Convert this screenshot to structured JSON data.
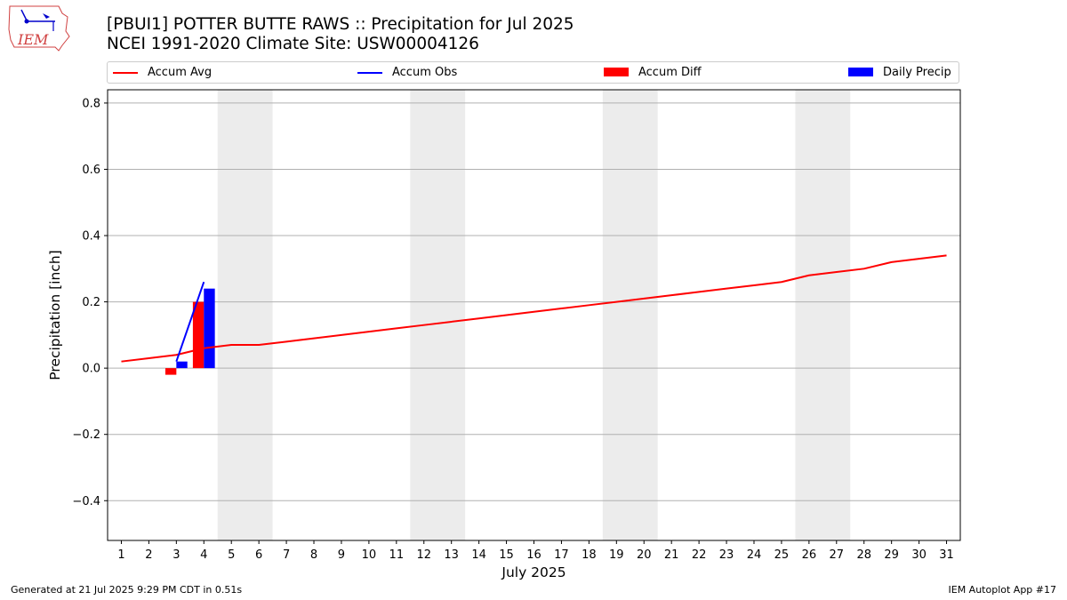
{
  "header": {
    "title_line1": "[PBUI1] POTTER BUTTE RAWS :: Precipitation for Jul 2025",
    "title_line2": "NCEI 1991-2020 Climate Site: USW00004126",
    "logo_text": "IEM"
  },
  "legend": [
    {
      "label": "Accum Avg",
      "color": "#ff0000",
      "kind": "line"
    },
    {
      "label": "Accum Obs",
      "color": "#0000ff",
      "kind": "line"
    },
    {
      "label": "Accum Diff",
      "color": "#ff0000",
      "kind": "patch"
    },
    {
      "label": "Daily Precip",
      "color": "#0000ff",
      "kind": "patch"
    }
  ],
  "footer": {
    "left": "Generated at 21 Jul 2025 9:29 PM CDT in 0.51s",
    "right": "IEM Autoplot App #17"
  },
  "chart_data": {
    "type": "bar",
    "title": "[PBUI1] POTTER BUTTE RAWS :: Precipitation for Jul 2025",
    "subtitle": "NCEI 1991-2020 Climate Site: USW00004126",
    "xlabel": "July 2025",
    "ylabel": "Precipitation [inch]",
    "xlim": [
      0.5,
      31.5
    ],
    "ylim": [
      -0.52,
      0.84
    ],
    "x_ticks": [
      1,
      2,
      3,
      4,
      5,
      6,
      7,
      8,
      9,
      10,
      11,
      12,
      13,
      14,
      15,
      16,
      17,
      18,
      19,
      20,
      21,
      22,
      23,
      24,
      25,
      26,
      27,
      28,
      29,
      30,
      31
    ],
    "y_ticks": [
      -0.4,
      -0.2,
      0.0,
      0.2,
      0.4,
      0.6,
      0.8
    ],
    "y_tick_labels": [
      "−0.4",
      "−0.2",
      "0.0",
      "0.2",
      "0.4",
      "0.6",
      "0.8"
    ],
    "grid": "horizontal",
    "legend_position": "top",
    "weekend_shading": [
      [
        5,
        6
      ],
      [
        12,
        13
      ],
      [
        19,
        20
      ],
      [
        26,
        27
      ]
    ],
    "shade_color": "#ececec",
    "series": [
      {
        "name": "Accum Avg",
        "kind": "line",
        "color": "#ff0000",
        "x": [
          1,
          2,
          3,
          4,
          5,
          6,
          7,
          8,
          9,
          10,
          11,
          12,
          13,
          14,
          15,
          16,
          17,
          18,
          19,
          20,
          21,
          22,
          23,
          24,
          25,
          26,
          27,
          28,
          29,
          30,
          31
        ],
        "values": [
          0.02,
          0.03,
          0.04,
          0.06,
          0.07,
          0.07,
          0.08,
          0.09,
          0.1,
          0.11,
          0.12,
          0.13,
          0.14,
          0.15,
          0.16,
          0.17,
          0.18,
          0.19,
          0.2,
          0.21,
          0.22,
          0.23,
          0.24,
          0.25,
          0.26,
          0.28,
          0.29,
          0.3,
          0.32,
          0.33,
          0.34
        ]
      },
      {
        "name": "Accum Obs",
        "kind": "line",
        "color": "#0000ff",
        "x": [
          3,
          4
        ],
        "values": [
          0.02,
          0.26
        ]
      },
      {
        "name": "Accum Diff",
        "kind": "bar",
        "color": "#ff0000",
        "offset": -0.2,
        "x": [
          3,
          4
        ],
        "values": [
          -0.02,
          0.2
        ]
      },
      {
        "name": "Daily Precip",
        "kind": "bar",
        "color": "#0000ff",
        "offset": 0.2,
        "x": [
          3,
          4
        ],
        "values": [
          0.02,
          0.24
        ]
      }
    ]
  }
}
